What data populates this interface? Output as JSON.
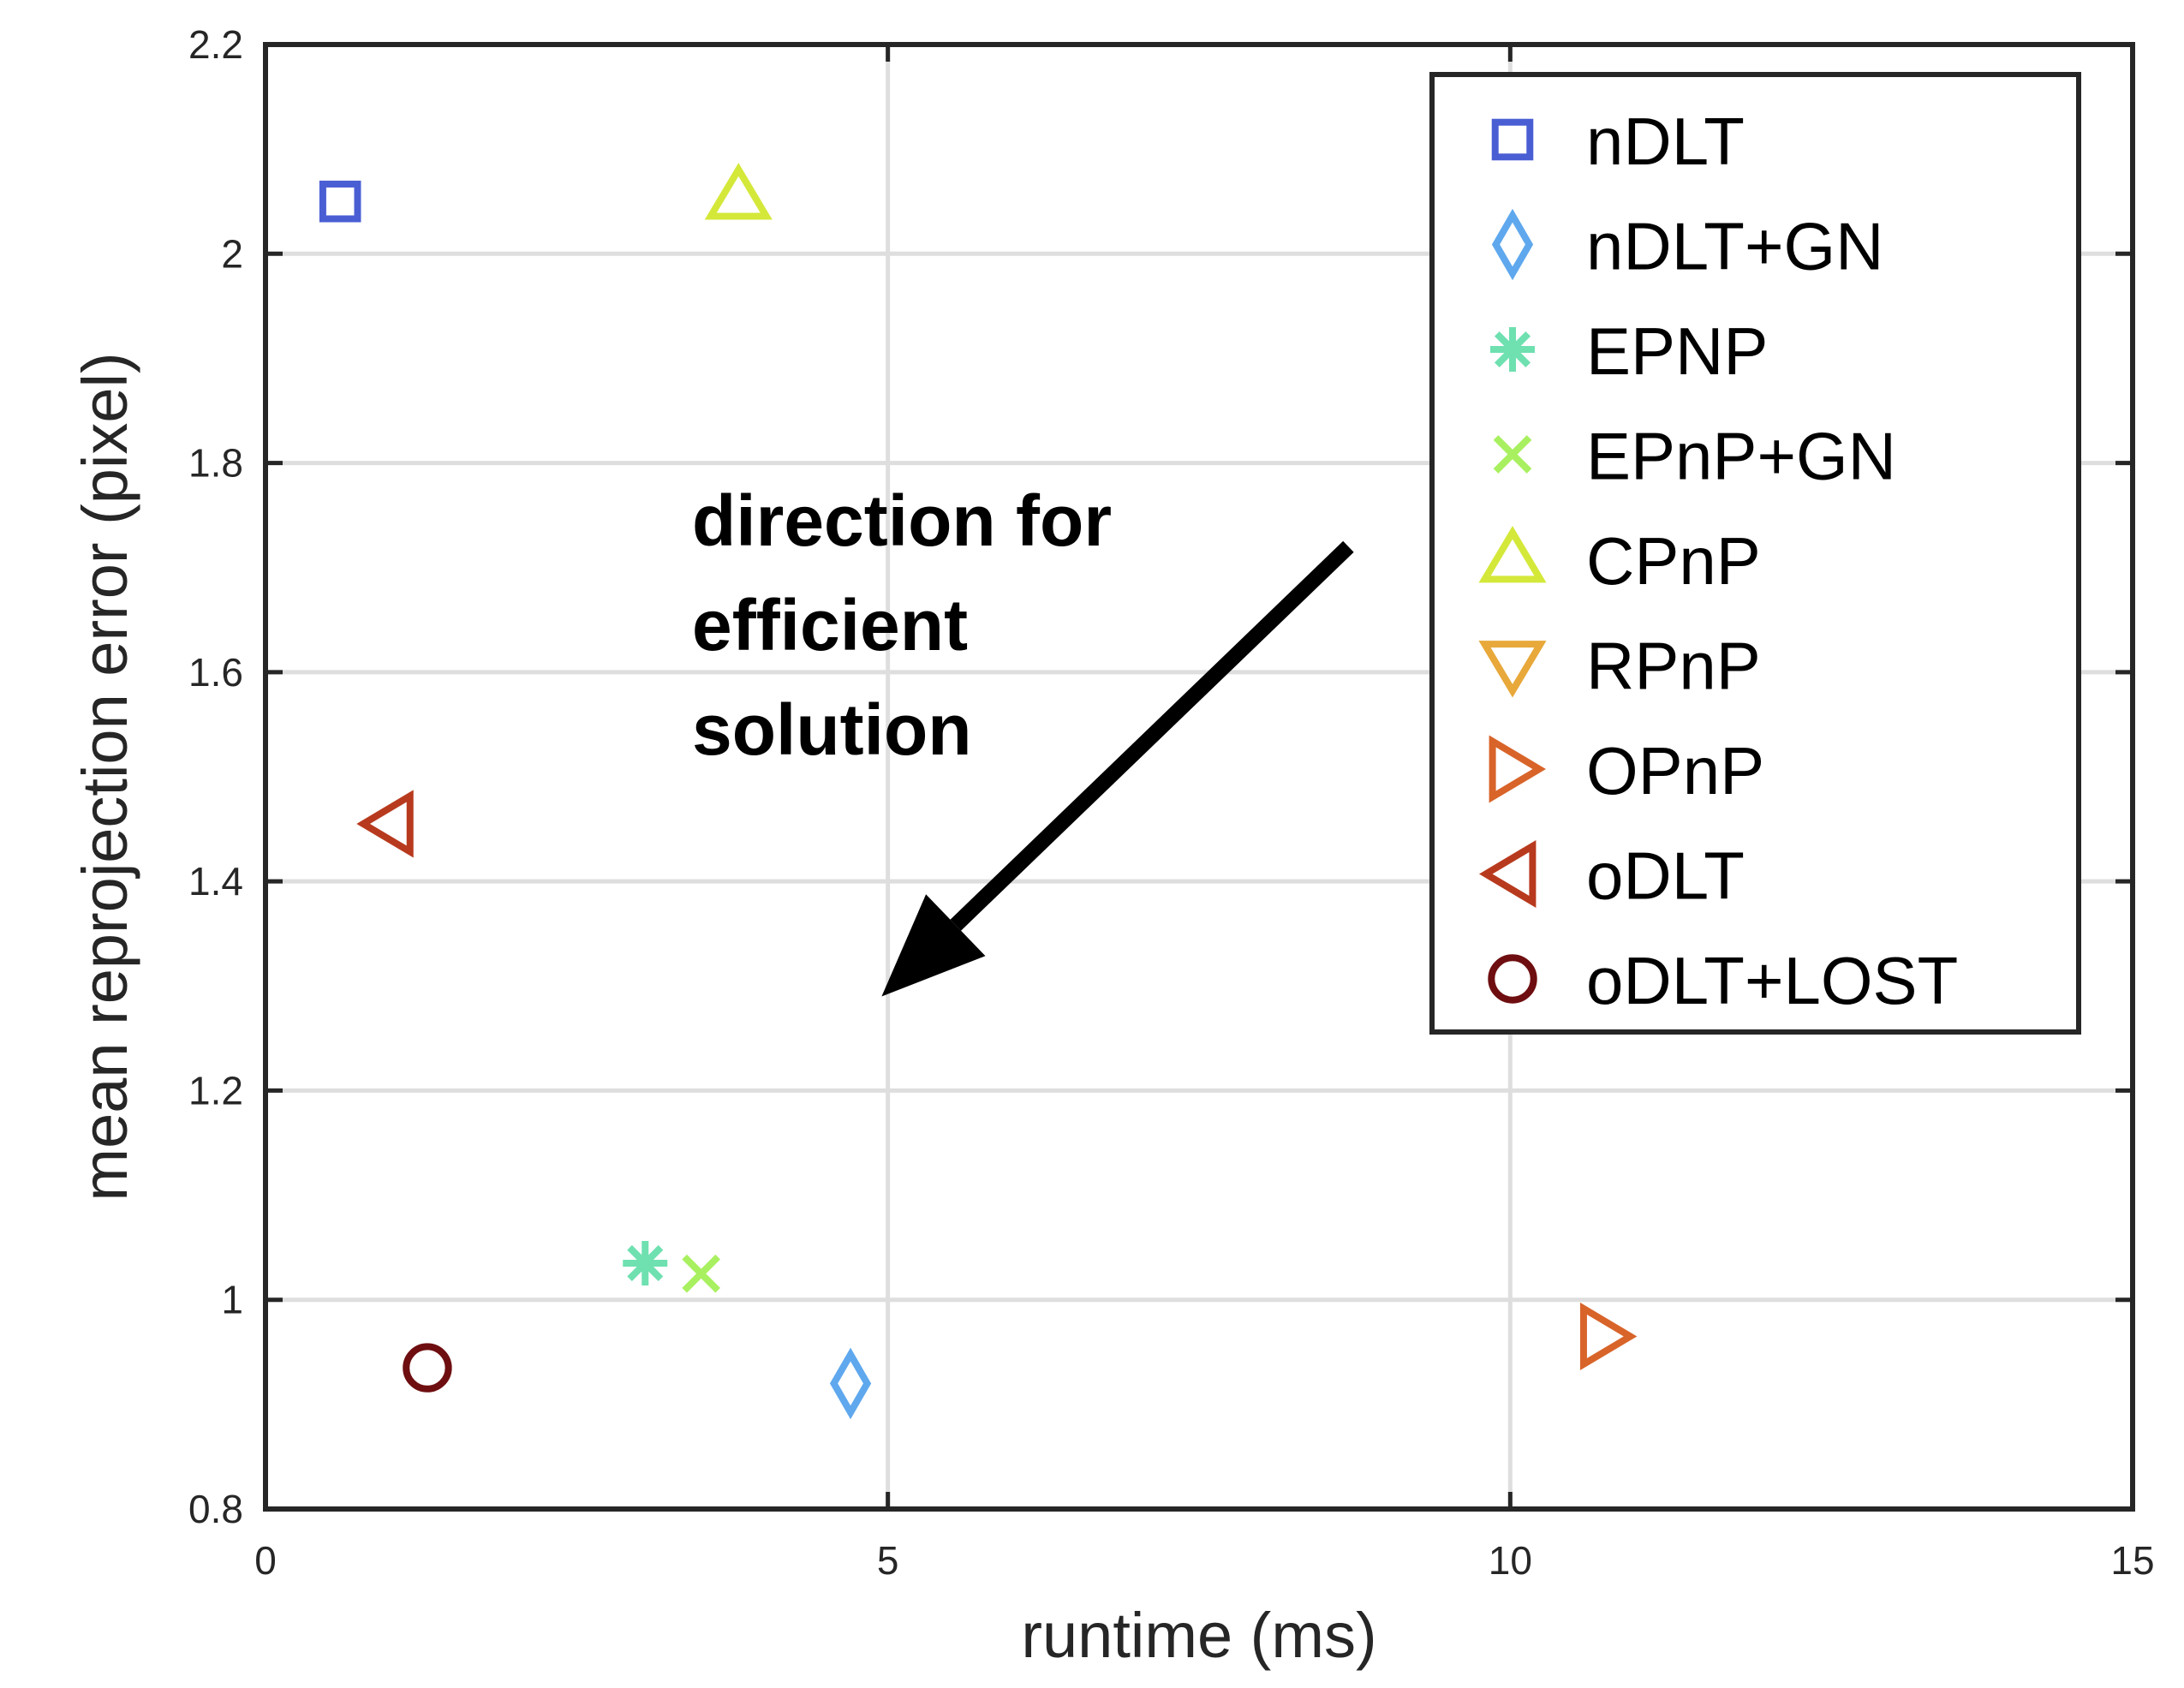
{
  "chart_data": {
    "type": "scatter",
    "xlabel": "runtime (ms)",
    "ylabel": "mean reprojection error (pixel)",
    "xlim": [
      0,
      15
    ],
    "ylim": [
      0.8,
      2.2
    ],
    "xticks": [
      "0",
      "5",
      "10",
      "15"
    ],
    "yticks": [
      "0.8",
      "1",
      "1.2",
      "1.4",
      "1.6",
      "1.8",
      "2",
      "2.2"
    ],
    "grid": true,
    "legend_position": "top-right",
    "series": [
      {
        "name": "nDLT",
        "marker": "square",
        "color": "#4a5ed4",
        "x": 0.6,
        "y": 2.05
      },
      {
        "name": "nDLT+GN",
        "marker": "diamond",
        "color": "#5fa8ee",
        "x": 4.7,
        "y": 0.92
      },
      {
        "name": "EPNP",
        "marker": "asterisk",
        "color": "#6fe0b0",
        "x": 3.05,
        "y": 1.035
      },
      {
        "name": "EPnP+GN",
        "marker": "x",
        "color": "#a8f060",
        "x": 3.5,
        "y": 1.025
      },
      {
        "name": "CPnP",
        "marker": "triangle-up",
        "color": "#d4e83a",
        "x": 3.8,
        "y": 2.055
      },
      {
        "name": "RPnP",
        "marker": "triangle-down",
        "color": "#e8a83a",
        "x": null,
        "y": null
      },
      {
        "name": "OPnP",
        "marker": "triangle-right",
        "color": "#d8642a",
        "x": 10.75,
        "y": 0.965
      },
      {
        "name": "oDLT",
        "marker": "triangle-left",
        "color": "#b83a1e",
        "x": 1.0,
        "y": 1.455
      },
      {
        "name": "oDLT+LOST",
        "marker": "circle",
        "color": "#6e0e10",
        "x": 1.3,
        "y": 0.935
      }
    ],
    "annotations": [
      {
        "lines": [
          "direction for",
          "efficient",
          "solution"
        ],
        "arrow_from": [
          8.7,
          1.72
        ],
        "arrow_to": [
          4.95,
          1.29
        ]
      }
    ]
  }
}
